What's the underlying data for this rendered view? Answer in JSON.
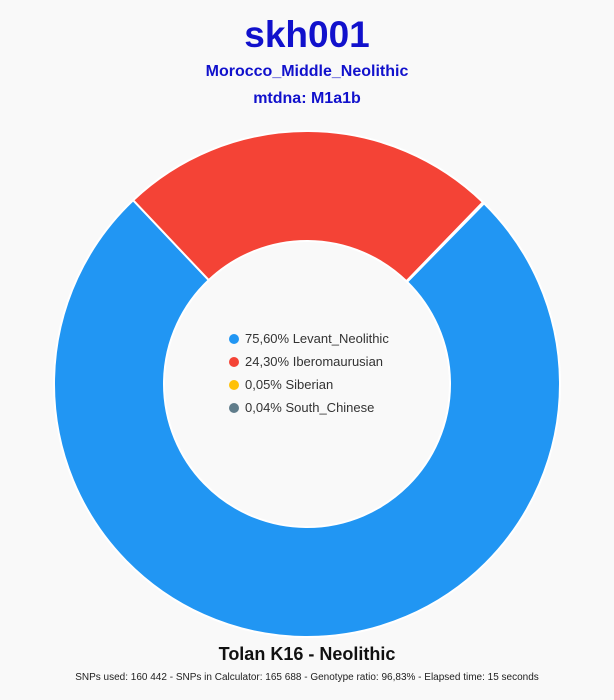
{
  "header": {
    "title": "skh001",
    "subtitle": "Morocco_Middle_Neolithic",
    "mtdna": "mtdna: M1a1b"
  },
  "chart_data": {
    "type": "pie",
    "variant": "donut",
    "title": "skh001",
    "subtitle": "Morocco_Middle_Neolithic",
    "start": "top, clockwise from the blue slice",
    "legend_position": "center",
    "slices": [
      {
        "label": "Levant_Neolithic",
        "value": 75.6,
        "display": "75,60%",
        "color": "#2196f3"
      },
      {
        "label": "Iberomaurusian",
        "value": 24.3,
        "display": "24,30%",
        "color": "#f44336"
      },
      {
        "label": "Siberian",
        "value": 0.05,
        "display": "0,05%",
        "color": "#ffc107"
      },
      {
        "label": "South_Chinese",
        "value": 0.04,
        "display": "0,04%",
        "color": "#607d8b"
      }
    ]
  },
  "footer": {
    "calculator": "Tolan K16 - Neolithic",
    "stats": "SNPs used: 160 442 - SNPs in Calculator: 165 688 - Genotype ratio: 96,83% - Elapsed time: 15 seconds"
  }
}
